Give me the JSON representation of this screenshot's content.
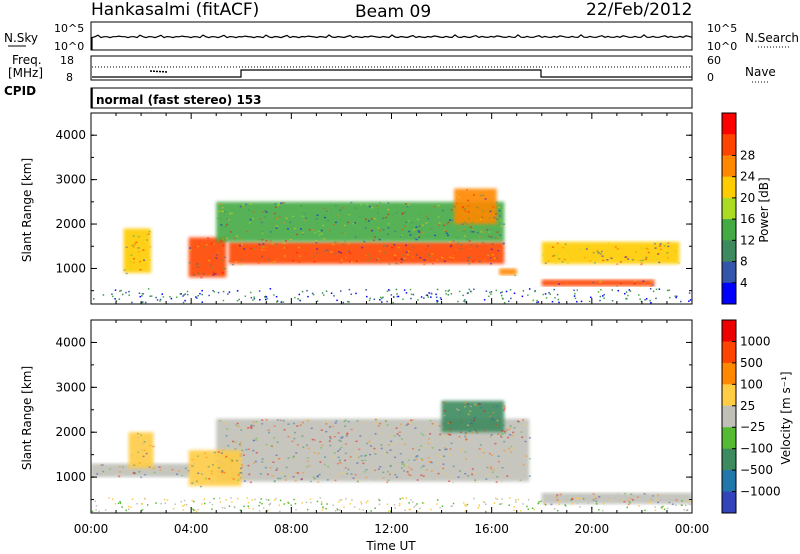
{
  "header": {
    "station": "Hankasalmi (fitACF)",
    "beam": "Beam 09",
    "date": "22/Feb/2012"
  },
  "top_panels": {
    "nsky_label": "N.Sky",
    "nsky_ticks": [
      "10^5",
      "10^0"
    ],
    "nsearch_label": "N.Search",
    "nsearch_ticks": [
      "10^5",
      "10^0"
    ],
    "freq_label_line1": "Freq.",
    "freq_label_line2": "[MHz]",
    "freq_ticks": [
      "18",
      "8"
    ],
    "nave_label": "Nave",
    "nave_ticks": [
      "60",
      "0"
    ],
    "cpid_label": "CPID",
    "cpid_text": "normal (fast stereo) 153"
  },
  "chart_data": [
    {
      "type": "heatmap",
      "name": "power",
      "ylabel": "Slant Range [km]",
      "y_ticks": [
        "1000",
        "2000",
        "3000",
        "4000"
      ],
      "ylim": [
        200,
        4500
      ],
      "x_ticks": [
        "00:00",
        "04:00",
        "08:00",
        "12:00",
        "16:00",
        "20:00",
        "00:00"
      ],
      "colorbar": {
        "label": "Power [dB]",
        "ticks": [
          "4",
          "8",
          "12",
          "16",
          "20",
          "24",
          "28"
        ],
        "colors": [
          "#0000ff",
          "#3355aa",
          "#3c8a5e",
          "#44aa44",
          "#aadd22",
          "#ffcc00",
          "#ff8800",
          "#ff4400",
          "#ff0000"
        ]
      },
      "regions": [
        {
          "t_start": 1.3,
          "t_end": 2.4,
          "r_low": 900,
          "r_high": 1900,
          "level": "20"
        },
        {
          "t_start": 3.9,
          "t_end": 5.4,
          "r_low": 800,
          "r_high": 1700,
          "level": "28"
        },
        {
          "t_start": 5.5,
          "t_end": 16.5,
          "r_low": 1100,
          "r_high": 1600,
          "level": "28"
        },
        {
          "t_start": 5.0,
          "t_end": 16.5,
          "r_low": 1600,
          "r_high": 2500,
          "level": "12"
        },
        {
          "t_start": 14.5,
          "t_end": 16.2,
          "r_low": 2000,
          "r_high": 2800,
          "level": "24"
        },
        {
          "t_start": 16.3,
          "t_end": 17.0,
          "r_low": 850,
          "r_high": 1000,
          "level": "24"
        },
        {
          "t_start": 18.0,
          "t_end": 22.5,
          "r_low": 600,
          "r_high": 750,
          "level": "28"
        },
        {
          "t_start": 18.0,
          "t_end": 23.5,
          "r_low": 1100,
          "r_high": 1600,
          "level": "20"
        }
      ]
    },
    {
      "type": "heatmap",
      "name": "velocity",
      "ylabel": "Slant Range [km]",
      "y_ticks": [
        "1000",
        "2000",
        "3000",
        "4000"
      ],
      "ylim": [
        200,
        4500
      ],
      "x_ticks": [
        "00:00",
        "04:00",
        "08:00",
        "12:00",
        "16:00",
        "20:00",
        "00:00"
      ],
      "xlabel": "Time UT",
      "colorbar": {
        "label": "Velocity [m s⁻¹]",
        "ticks": [
          "1000",
          "500",
          "100",
          "25",
          "−25",
          "−100",
          "−500",
          "−1000"
        ],
        "colors": [
          "#3344bb",
          "#2277aa",
          "#3c8a5e",
          "#55bb33",
          "#c0c0b8",
          "#ffcc44",
          "#ff8800",
          "#ff4400",
          "#ee0000"
        ]
      },
      "regions": [
        {
          "t_start": 0.0,
          "t_end": 4.0,
          "r_low": 1000,
          "r_high": 1300,
          "level": "0"
        },
        {
          "t_start": 5.0,
          "t_end": 17.5,
          "r_low": 900,
          "r_high": 2300,
          "level": "0"
        },
        {
          "t_start": 1.5,
          "t_end": 2.5,
          "r_low": 1200,
          "r_high": 2000,
          "level": "-100"
        },
        {
          "t_start": 3.9,
          "t_end": 6.0,
          "r_low": 800,
          "r_high": 1600,
          "level": "-100"
        },
        {
          "t_start": 14.0,
          "t_end": 16.5,
          "r_low": 2000,
          "r_high": 2700,
          "level": "100"
        },
        {
          "t_start": 18.0,
          "t_end": 24.0,
          "r_low": 400,
          "r_high": 650,
          "level": "0"
        }
      ]
    }
  ],
  "xlabel": "Time UT"
}
